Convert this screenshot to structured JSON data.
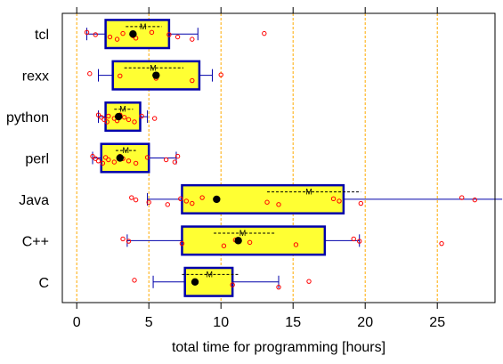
{
  "chart_data": {
    "type": "boxplot",
    "title": "",
    "xlabel": "total time for programming [hours]",
    "ylabel": "",
    "xlim": [
      -1,
      29
    ],
    "xticks": [
      0,
      5,
      10,
      15,
      20,
      25
    ],
    "mean_marker_label": "M",
    "grid": "vertical dashed orange lines at x = 0, 5, 10, 15, 20, 25",
    "colors": {
      "box_fill": "#ffff33",
      "box_stroke": "#0000aa",
      "points": "#ff0000",
      "median": "#000000",
      "grid": "#ffaa00"
    },
    "categories": [
      "tcl",
      "rexx",
      "python",
      "perl",
      "Java",
      "C++",
      "C"
    ],
    "boxes": [
      {
        "label": "tcl",
        "whisker_low": 0.7,
        "q1": 2.0,
        "median": 3.9,
        "q3": 6.4,
        "whisker_high": 8.4,
        "mean": 4.6,
        "mean_se": [
          3.4,
          5.9
        ],
        "points": [
          0.7,
          1.3,
          2.3,
          2.8,
          3.2,
          3.9,
          4.1,
          5.2,
          6.4,
          7.0,
          8.0,
          13.0
        ]
      },
      {
        "label": "rexx",
        "whisker_low": 1.5,
        "q1": 2.5,
        "median": 5.5,
        "q3": 8.5,
        "whisker_high": 9.4,
        "mean": 5.3,
        "mean_se": [
          3.3,
          7.4
        ],
        "points": [
          0.9,
          3.0,
          5.5,
          8.0,
          10.0
        ]
      },
      {
        "label": "python",
        "whisker_low": 1.5,
        "q1": 2.0,
        "median": 2.9,
        "q3": 4.4,
        "whisker_high": 4.9,
        "mean": 3.2,
        "mean_se": [
          2.6,
          3.9
        ],
        "points": [
          1.5,
          1.7,
          1.9,
          2.1,
          2.2,
          2.6,
          2.8,
          3.0,
          3.3,
          3.6,
          4.0,
          4.5,
          5.4
        ]
      },
      {
        "label": "perl",
        "whisker_low": 1.1,
        "q1": 1.7,
        "median": 3.0,
        "q3": 5.0,
        "whisker_high": 6.9,
        "mean": 3.4,
        "mean_se": [
          2.7,
          4.1
        ],
        "points": [
          1.1,
          1.3,
          1.5,
          1.8,
          2.0,
          2.2,
          2.6,
          3.0,
          3.2,
          3.6,
          4.1,
          4.9,
          6.2,
          6.8,
          7.0
        ]
      },
      {
        "label": "Java",
        "whisker_low": 4.9,
        "q1": 7.3,
        "median": 9.7,
        "q3": 18.5,
        "whisker_high": 29.5,
        "mean": 16.1,
        "mean_se": [
          13.2,
          19.7
        ],
        "points": [
          3.8,
          4.1,
          5.0,
          6.3,
          7.2,
          7.6,
          8.0,
          8.7,
          9.7,
          13.2,
          14.0,
          17.8,
          18.2,
          19.7,
          26.7,
          27.6
        ]
      },
      {
        "label": "C++",
        "whisker_low": 3.5,
        "q1": 7.3,
        "median": 11.2,
        "q3": 17.2,
        "whisker_high": 19.6,
        "mean": 11.5,
        "mean_se": [
          9.5,
          13.8
        ],
        "points": [
          3.2,
          3.6,
          7.3,
          10.2,
          11.0,
          12.0,
          15.2,
          19.2,
          19.6,
          25.3
        ]
      },
      {
        "label": "C",
        "whisker_low": 5.3,
        "q1": 7.5,
        "median": 8.2,
        "q3": 10.8,
        "whisker_high": 14.0,
        "mean": 9.2,
        "mean_se": [
          7.3,
          11.2
        ],
        "points": [
          4.0,
          8.2,
          10.8,
          14.0,
          16.1
        ]
      }
    ]
  }
}
